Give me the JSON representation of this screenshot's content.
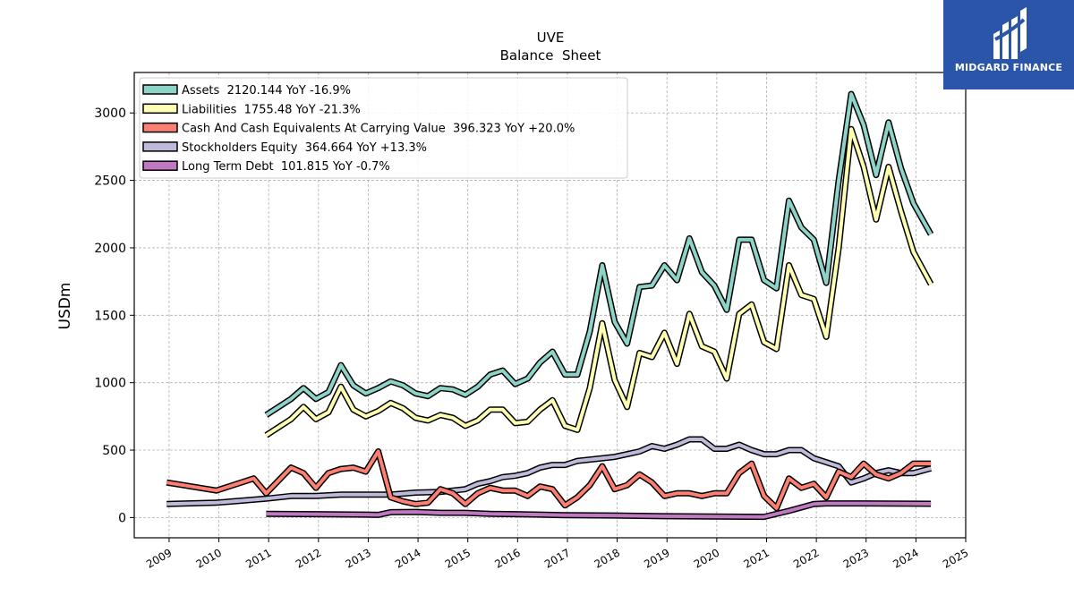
{
  "brand": {
    "name": "MIDGARD FINANCE",
    "bg_color": "#2a55a8"
  },
  "chart_data": {
    "type": "line",
    "title": "UVE",
    "subtitle": "Balance  Sheet",
    "xlabel": "",
    "ylabel": "USDm",
    "xlim": [
      2008.3,
      2025.0
    ],
    "ylim": [
      -150,
      3300
    ],
    "x_ticks": [
      "2009",
      "2010",
      "2011",
      "2012",
      "2013",
      "2014",
      "2015",
      "2016",
      "2017",
      "2018",
      "2019",
      "2020",
      "2021",
      "2022",
      "2023",
      "2024",
      "2025"
    ],
    "y_ticks": [
      0,
      500,
      1000,
      1500,
      2000,
      2500,
      3000
    ],
    "grid": true,
    "legend_position": "top-left",
    "series": [
      {
        "name": "Assets",
        "legend_label": "Assets  2120.144 YoY -16.9%",
        "color": "#8dd3c7",
        "points": [
          [
            2010.95,
            760
          ],
          [
            2011.45,
            880
          ],
          [
            2011.7,
            960
          ],
          [
            2011.95,
            880
          ],
          [
            2012.2,
            930
          ],
          [
            2012.45,
            1130
          ],
          [
            2012.7,
            980
          ],
          [
            2012.95,
            920
          ],
          [
            2013.2,
            960
          ],
          [
            2013.45,
            1010
          ],
          [
            2013.7,
            980
          ],
          [
            2013.95,
            920
          ],
          [
            2014.2,
            900
          ],
          [
            2014.45,
            960
          ],
          [
            2014.7,
            950
          ],
          [
            2014.95,
            910
          ],
          [
            2015.2,
            970
          ],
          [
            2015.45,
            1060
          ],
          [
            2015.7,
            1090
          ],
          [
            2015.95,
            990
          ],
          [
            2016.2,
            1030
          ],
          [
            2016.45,
            1150
          ],
          [
            2016.7,
            1230
          ],
          [
            2016.95,
            1060
          ],
          [
            2017.2,
            1060
          ],
          [
            2017.45,
            1380
          ],
          [
            2017.7,
            1870
          ],
          [
            2017.95,
            1450
          ],
          [
            2018.2,
            1290
          ],
          [
            2018.45,
            1710
          ],
          [
            2018.7,
            1720
          ],
          [
            2018.95,
            1870
          ],
          [
            2019.2,
            1760
          ],
          [
            2019.45,
            2070
          ],
          [
            2019.7,
            1820
          ],
          [
            2019.95,
            1720
          ],
          [
            2020.2,
            1540
          ],
          [
            2020.45,
            2060
          ],
          [
            2020.7,
            2060
          ],
          [
            2020.95,
            1760
          ],
          [
            2021.2,
            1700
          ],
          [
            2021.45,
            2350
          ],
          [
            2021.7,
            2150
          ],
          [
            2021.95,
            2060
          ],
          [
            2022.2,
            1740
          ],
          [
            2022.45,
            2500
          ],
          [
            2022.7,
            3140
          ],
          [
            2022.95,
            2910
          ],
          [
            2023.2,
            2540
          ],
          [
            2023.45,
            2930
          ],
          [
            2023.7,
            2590
          ],
          [
            2023.95,
            2330
          ],
          [
            2024.3,
            2100
          ]
        ]
      },
      {
        "name": "Liabilities",
        "legend_label": "Liabilities  1755.48 YoY -21.3%",
        "color": "#ffffb3",
        "points": [
          [
            2010.95,
            610
          ],
          [
            2011.45,
            730
          ],
          [
            2011.7,
            820
          ],
          [
            2011.95,
            730
          ],
          [
            2012.2,
            780
          ],
          [
            2012.45,
            970
          ],
          [
            2012.7,
            800
          ],
          [
            2012.95,
            750
          ],
          [
            2013.2,
            790
          ],
          [
            2013.45,
            850
          ],
          [
            2013.7,
            810
          ],
          [
            2013.95,
            740
          ],
          [
            2014.2,
            720
          ],
          [
            2014.45,
            760
          ],
          [
            2014.7,
            740
          ],
          [
            2014.95,
            680
          ],
          [
            2015.2,
            720
          ],
          [
            2015.45,
            800
          ],
          [
            2015.7,
            800
          ],
          [
            2015.95,
            700
          ],
          [
            2016.2,
            710
          ],
          [
            2016.45,
            800
          ],
          [
            2016.7,
            870
          ],
          [
            2016.95,
            680
          ],
          [
            2017.2,
            650
          ],
          [
            2017.45,
            960
          ],
          [
            2017.7,
            1440
          ],
          [
            2017.95,
            1020
          ],
          [
            2018.2,
            820
          ],
          [
            2018.45,
            1220
          ],
          [
            2018.7,
            1190
          ],
          [
            2018.95,
            1370
          ],
          [
            2019.2,
            1140
          ],
          [
            2019.45,
            1510
          ],
          [
            2019.7,
            1270
          ],
          [
            2019.95,
            1230
          ],
          [
            2020.2,
            1030
          ],
          [
            2020.45,
            1510
          ],
          [
            2020.7,
            1580
          ],
          [
            2020.95,
            1300
          ],
          [
            2021.2,
            1250
          ],
          [
            2021.45,
            1870
          ],
          [
            2021.7,
            1650
          ],
          [
            2021.95,
            1620
          ],
          [
            2022.2,
            1340
          ],
          [
            2022.45,
            2000
          ],
          [
            2022.7,
            2880
          ],
          [
            2022.95,
            2600
          ],
          [
            2023.2,
            2210
          ],
          [
            2023.45,
            2600
          ],
          [
            2023.7,
            2270
          ],
          [
            2023.95,
            1970
          ],
          [
            2024.3,
            1730
          ]
        ]
      },
      {
        "name": "Cash And Cash Equivalents At Carrying Value",
        "legend_label": "Cash And Cash Equivalents At Carrying Value  396.323 YoY +20.0%",
        "color": "#fb8072",
        "points": [
          [
            2008.95,
            260
          ],
          [
            2009.95,
            200
          ],
          [
            2010.7,
            290
          ],
          [
            2010.95,
            180
          ],
          [
            2011.45,
            370
          ],
          [
            2011.7,
            330
          ],
          [
            2011.95,
            220
          ],
          [
            2012.2,
            330
          ],
          [
            2012.45,
            360
          ],
          [
            2012.7,
            370
          ],
          [
            2012.95,
            340
          ],
          [
            2013.2,
            490
          ],
          [
            2013.45,
            150
          ],
          [
            2013.7,
            120
          ],
          [
            2013.95,
            100
          ],
          [
            2014.2,
            110
          ],
          [
            2014.45,
            210
          ],
          [
            2014.7,
            180
          ],
          [
            2014.95,
            100
          ],
          [
            2015.2,
            180
          ],
          [
            2015.45,
            220
          ],
          [
            2015.7,
            200
          ],
          [
            2015.95,
            200
          ],
          [
            2016.2,
            160
          ],
          [
            2016.45,
            230
          ],
          [
            2016.7,
            210
          ],
          [
            2016.95,
            90
          ],
          [
            2017.2,
            150
          ],
          [
            2017.45,
            240
          ],
          [
            2017.7,
            380
          ],
          [
            2017.95,
            210
          ],
          [
            2018.2,
            240
          ],
          [
            2018.45,
            320
          ],
          [
            2018.7,
            260
          ],
          [
            2018.95,
            160
          ],
          [
            2019.2,
            180
          ],
          [
            2019.45,
            180
          ],
          [
            2019.7,
            160
          ],
          [
            2019.95,
            180
          ],
          [
            2020.2,
            180
          ],
          [
            2020.45,
            330
          ],
          [
            2020.7,
            400
          ],
          [
            2020.95,
            160
          ],
          [
            2021.2,
            70
          ],
          [
            2021.45,
            290
          ],
          [
            2021.7,
            220
          ],
          [
            2021.95,
            250
          ],
          [
            2022.2,
            150
          ],
          [
            2022.45,
            340
          ],
          [
            2022.7,
            300
          ],
          [
            2022.95,
            400
          ],
          [
            2023.2,
            320
          ],
          [
            2023.45,
            290
          ],
          [
            2023.7,
            330
          ],
          [
            2023.95,
            400
          ],
          [
            2024.3,
            400
          ]
        ]
      },
      {
        "name": "Stockholders Equity",
        "legend_label": "Stockholders Equity  364.664 YoY +13.3%",
        "color": "#bebada",
        "points": [
          [
            2008.95,
            100
          ],
          [
            2009.95,
            110
          ],
          [
            2010.95,
            140
          ],
          [
            2011.45,
            160
          ],
          [
            2011.95,
            160
          ],
          [
            2012.45,
            170
          ],
          [
            2012.95,
            170
          ],
          [
            2013.45,
            170
          ],
          [
            2013.95,
            185
          ],
          [
            2014.45,
            190
          ],
          [
            2014.95,
            210
          ],
          [
            2015.2,
            250
          ],
          [
            2015.45,
            270
          ],
          [
            2015.7,
            300
          ],
          [
            2015.95,
            310
          ],
          [
            2016.2,
            330
          ],
          [
            2016.45,
            370
          ],
          [
            2016.7,
            390
          ],
          [
            2016.95,
            390
          ],
          [
            2017.2,
            420
          ],
          [
            2017.45,
            430
          ],
          [
            2017.7,
            440
          ],
          [
            2017.95,
            450
          ],
          [
            2018.2,
            470
          ],
          [
            2018.45,
            490
          ],
          [
            2018.7,
            530
          ],
          [
            2018.95,
            510
          ],
          [
            2019.2,
            540
          ],
          [
            2019.45,
            580
          ],
          [
            2019.7,
            580
          ],
          [
            2019.95,
            510
          ],
          [
            2020.2,
            510
          ],
          [
            2020.45,
            540
          ],
          [
            2020.7,
            500
          ],
          [
            2020.95,
            470
          ],
          [
            2021.2,
            470
          ],
          [
            2021.45,
            500
          ],
          [
            2021.7,
            500
          ],
          [
            2021.95,
            440
          ],
          [
            2022.2,
            410
          ],
          [
            2022.45,
            380
          ],
          [
            2022.7,
            260
          ],
          [
            2022.95,
            290
          ],
          [
            2023.2,
            330
          ],
          [
            2023.45,
            350
          ],
          [
            2023.7,
            330
          ],
          [
            2023.95,
            330
          ],
          [
            2024.3,
            365
          ]
        ]
      },
      {
        "name": "Long Term Debt",
        "legend_label": "Long Term Debt  101.815 YoY -0.7%",
        "color": "#c178c2",
        "points": [
          [
            2010.95,
            28
          ],
          [
            2011.95,
            25
          ],
          [
            2012.95,
            22
          ],
          [
            2013.2,
            20
          ],
          [
            2013.45,
            40
          ],
          [
            2013.95,
            42
          ],
          [
            2014.45,
            35
          ],
          [
            2014.95,
            35
          ],
          [
            2015.45,
            28
          ],
          [
            2015.95,
            25
          ],
          [
            2016.45,
            22
          ],
          [
            2016.95,
            18
          ],
          [
            2017.95,
            15
          ],
          [
            2018.95,
            10
          ],
          [
            2019.95,
            8
          ],
          [
            2020.95,
            5
          ],
          [
            2021.45,
            50
          ],
          [
            2021.95,
            100
          ],
          [
            2022.2,
            105
          ],
          [
            2022.95,
            105
          ],
          [
            2023.95,
            103
          ],
          [
            2024.3,
            102
          ]
        ]
      }
    ]
  }
}
